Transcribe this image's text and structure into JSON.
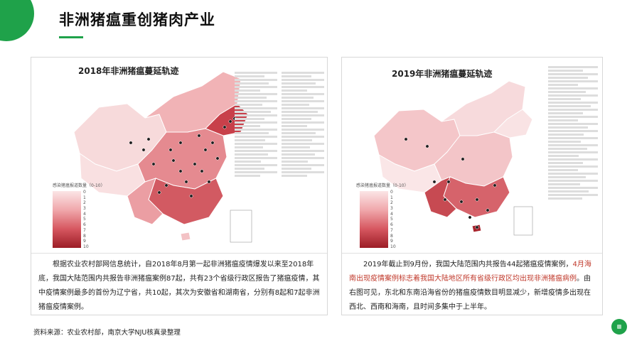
{
  "page": {
    "title": "非洲猪瘟重创猪肉产业",
    "source": "资料来源：农业农村部，南京大学NJU核真录整理"
  },
  "left": {
    "map_title": "2018年非洲猪瘟蔓延轨迹",
    "legend_title": "感染猪瘟报道数量（0-10）",
    "legend_ticks": [
      "0",
      "1",
      "2",
      "3",
      "4",
      "5",
      "6",
      "7",
      "8",
      "9",
      "10"
    ],
    "caption": "根据农业农村部网信息统计，自2018年8月第一起非洲猪瘟疫情爆发以来至2018年底，我国大陆范围内共报告非洲猪瘟案例87起，共有23个省级行政区报告了猪瘟疫情，其中疫情案例最多的首份为辽宁省，共10起，其次为安徽省和湖南省，分别有8起和7起非洲猪瘟疫情案例。"
  },
  "right": {
    "map_title": "2019年非洲猪瘟蔓延轨迹",
    "legend_title": "感染猪瘟报道数量（0-10）",
    "legend_ticks": [
      "0",
      "1",
      "2",
      "3",
      "4",
      "5",
      "6",
      "7",
      "8",
      "9",
      "10"
    ],
    "caption_part1": "2019年截止到9月份，我国大陆范围内共报告44起猪瘟疫情案例，",
    "caption_red": "4月海南出现疫情案例标志着我国大陆地区所有省级行政区均出现非洲猪瘟病例",
    "caption_part2": "。由右图可见，东北和东南沿海省份的猪瘟疫情数目明显减少，新增疫情多出现在西北、西南和海南，且时间多集中于上半年。"
  },
  "colors": {
    "accent": "#1fa24a",
    "map_light": "#f6cfd1",
    "map_mid": "#e5868b",
    "map_dark": "#b32630",
    "highlight_text": "#c0392b"
  }
}
